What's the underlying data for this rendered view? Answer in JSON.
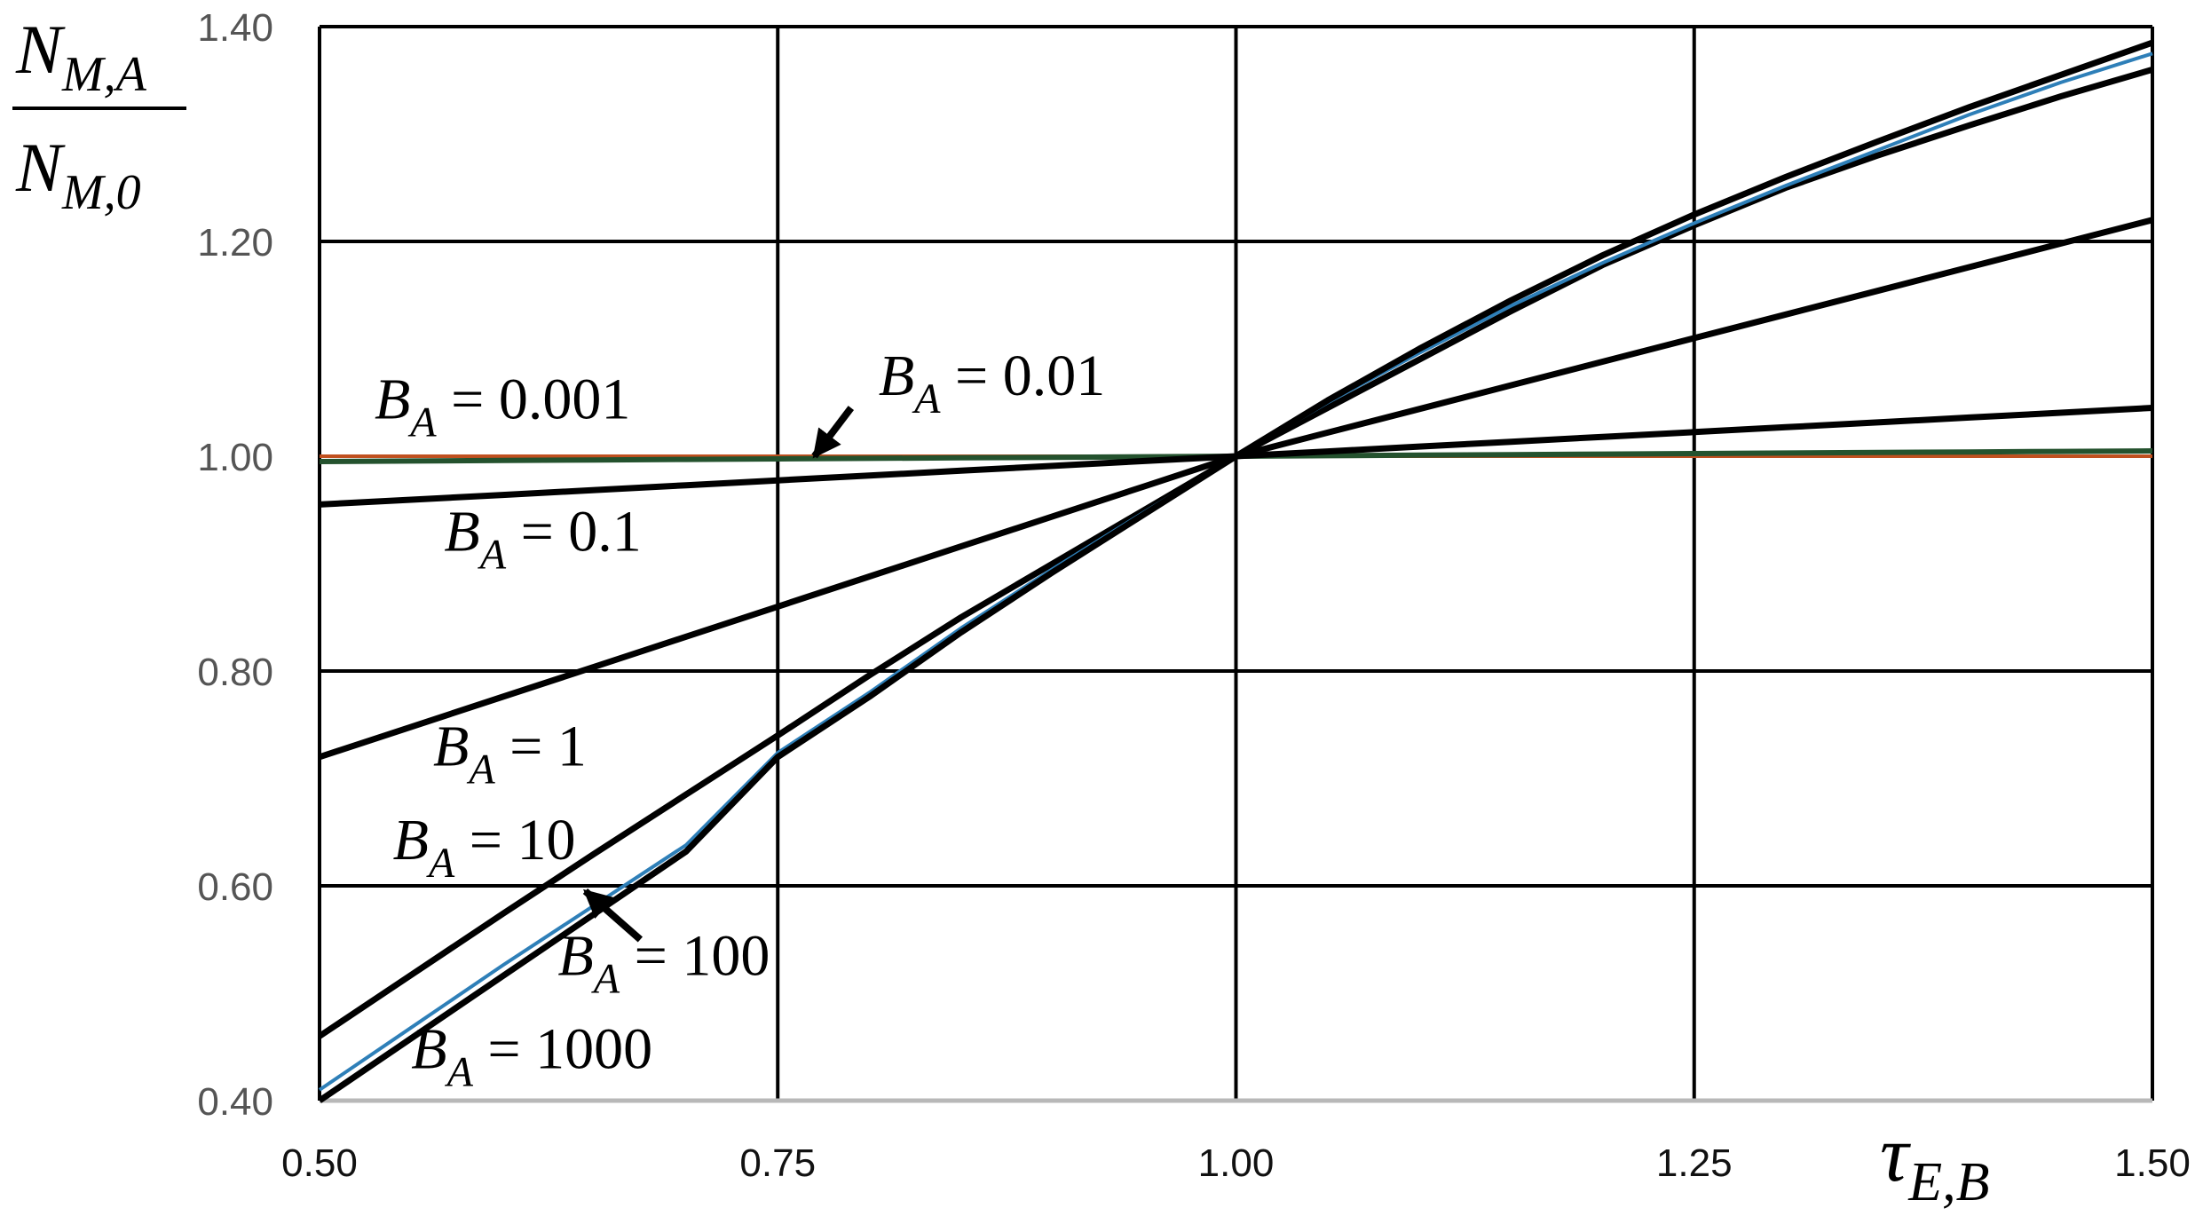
{
  "chart_data": {
    "type": "line",
    "xlabel": {
      "main": "τ",
      "sub": "E,B"
    },
    "ylabel": {
      "numerator": {
        "main": "N",
        "sub": "M,A"
      },
      "denominator": {
        "main": "N",
        "sub": "M,0"
      }
    },
    "xlim": [
      0.5,
      1.5
    ],
    "ylim": [
      0.4,
      1.4
    ],
    "grid": true,
    "x_tick_labels": [
      "0.50",
      "0.75",
      "1.00",
      "1.25",
      "1.50"
    ],
    "y_tick_labels": [
      "0.40",
      "0.60",
      "0.80",
      "1.00",
      "1.20",
      "1.40"
    ],
    "x_ticks": [
      0.5,
      0.75,
      1.0,
      1.25,
      1.5
    ],
    "y_ticks": [
      0.4,
      0.6,
      0.8,
      1.0,
      1.2,
      1.4
    ],
    "x": [
      0.5,
      0.55,
      0.6,
      0.65,
      0.7,
      0.75,
      0.8,
      0.85,
      0.9,
      0.95,
      1.0,
      1.05,
      1.1,
      1.15,
      1.2,
      1.25,
      1.3,
      1.35,
      1.4,
      1.45,
      1.5
    ],
    "series": [
      {
        "label": "B_A = 0.001",
        "color": "#c0501f",
        "width": 4,
        "values": [
          1.0,
          1.0,
          1.0,
          1.0,
          1.0,
          1.0,
          1.0,
          1.0,
          1.0,
          1.0,
          1.0,
          1.0,
          1.0,
          1.0,
          1.0,
          1.0,
          1.0,
          1.0,
          1.0,
          1.0,
          1.0
        ]
      },
      {
        "label": "B_A = 0.01",
        "color": "#24522e",
        "width": 6,
        "values": [
          0.995,
          0.9955,
          0.996,
          0.9965,
          0.997,
          0.9975,
          0.998,
          0.9985,
          0.999,
          0.9995,
          1.0,
          1.0005,
          1.001,
          1.0015,
          1.002,
          1.0025,
          1.003,
          1.0035,
          1.004,
          1.0045,
          1.005
        ]
      },
      {
        "label": "B_A = 0.1",
        "color": "#000000",
        "width": 7,
        "values": [
          0.955,
          0.9595,
          0.964,
          0.9685,
          0.973,
          0.9775,
          0.982,
          0.9865,
          0.991,
          0.9955,
          1.0,
          1.0045,
          1.009,
          1.0135,
          1.018,
          1.0225,
          1.027,
          1.0315,
          1.036,
          1.0405,
          1.045
        ]
      },
      {
        "label": "B_A = 1",
        "color": "#000000",
        "width": 7,
        "values": [
          0.72,
          0.748,
          0.776,
          0.804,
          0.832,
          0.86,
          0.888,
          0.916,
          0.944,
          0.972,
          1.0,
          1.022,
          1.044,
          1.066,
          1.088,
          1.11,
          1.132,
          1.154,
          1.176,
          1.198,
          1.22
        ]
      },
      {
        "label": "B_A = 10",
        "color": "#000000",
        "width": 7,
        "values": [
          0.46,
          0.517,
          0.574,
          0.63,
          0.685,
          0.74,
          0.796,
          0.85,
          0.9,
          0.95,
          1.0,
          1.045,
          1.09,
          1.135,
          1.178,
          1.215,
          1.25,
          1.28,
          1.308,
          1.335,
          1.36
        ]
      },
      {
        "label": "B_A = 100",
        "color": "#2e7fb8",
        "width": 4,
        "values": [
          0.41,
          0.468,
          0.526,
          0.582,
          0.638,
          0.724,
          0.78,
          0.84,
          0.895,
          0.948,
          1.0,
          1.05,
          1.096,
          1.14,
          1.18,
          1.217,
          1.252,
          1.285,
          1.318,
          1.348,
          1.375
        ]
      },
      {
        "label": "B_A = 1000",
        "color": "#000000",
        "width": 7,
        "values": [
          0.4,
          0.458,
          0.516,
          0.574,
          0.632,
          0.72,
          0.776,
          0.836,
          0.892,
          0.946,
          1.0,
          1.052,
          1.1,
          1.145,
          1.187,
          1.225,
          1.26,
          1.293,
          1.325,
          1.355,
          1.385
        ]
      }
    ],
    "annotations": [
      {
        "main": "B",
        "sub": "A",
        "rest": " = 0.001",
        "x": 0.53,
        "y": 1.035
      },
      {
        "main": "B",
        "sub": "A",
        "rest": " = 0.01",
        "x": 0.805,
        "y": 1.057,
        "arrow_to": [
          0.77,
          1.0
        ],
        "arrow_from": [
          0.79,
          1.045
        ]
      },
      {
        "main": "B",
        "sub": "A",
        "rest": " = 0.1",
        "x": 0.568,
        "y": 0.912
      },
      {
        "main": "B",
        "sub": "A",
        "rest": " = 1",
        "x": 0.562,
        "y": 0.712
      },
      {
        "main": "B",
        "sub": "A",
        "rest": " = 10",
        "x": 0.54,
        "y": 0.625
      },
      {
        "main": "B",
        "sub": "A",
        "rest": " = 100",
        "x": 0.63,
        "y": 0.517,
        "arrow_to": [
          0.645,
          0.595
        ],
        "arrow_from": [
          0.675,
          0.55
        ]
      },
      {
        "main": "B",
        "sub": "A",
        "rest": " = 1000",
        "x": 0.55,
        "y": 0.43
      }
    ]
  }
}
